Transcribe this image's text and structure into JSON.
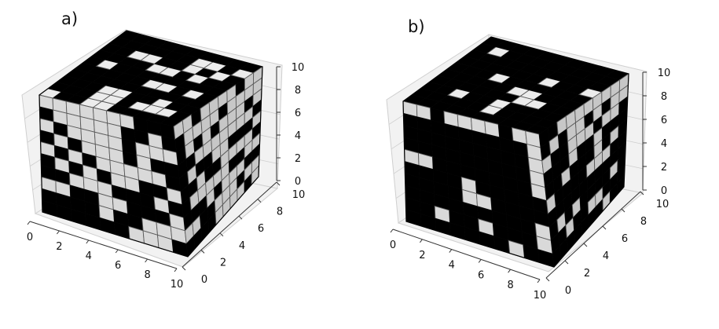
{
  "colors": {
    "background": "#ffffff",
    "pane": "#f2f2f2",
    "grid": "#cfcfcf",
    "voxel_black": "#000000",
    "voxel_white_top": "#ececec",
    "voxel_white_left": "#d9d9d9",
    "voxel_white_right": "#c7c7c7",
    "edge": "#5a5a5a",
    "axis": "#333333"
  },
  "chart_data": [
    {
      "type": "voxel",
      "panel_label": "a)",
      "grid_size": 10,
      "x_ticks": [
        "0",
        "2",
        "4",
        "6",
        "8",
        "10"
      ],
      "y_ticks": [
        "0",
        "2",
        "4",
        "6",
        "8",
        "10"
      ],
      "z_ticks": [
        "0",
        "2",
        "4",
        "6",
        "8",
        "10"
      ],
      "xlim": [
        0,
        10
      ],
      "ylim": [
        0,
        10
      ],
      "zlim": [
        0,
        10
      ],
      "grid": true,
      "white_fraction": 0.3,
      "faces": {
        "top": [
          "1001100000",
          "0001101110",
          "0001100100",
          "0000000000",
          "0000011010",
          "0100000000",
          "0000110100",
          "0011001010",
          "0000001101",
          "0000000000"
        ],
        "front": [
          "1111111000",
          "0111110010",
          "1011110111",
          "0101110100",
          "1010111110",
          "0101011001",
          "0011100010",
          "1100110001",
          "0000100111",
          "0000001110"
        ],
        "right": [
          "1101111011",
          "0111101111",
          "0101011101",
          "0011111110",
          "0100110001",
          "0010011110",
          "0111110011",
          "0001011100",
          "1100111011",
          "0000111101"
        ]
      }
    },
    {
      "type": "voxel",
      "panel_label": "b)",
      "grid_size": 10,
      "x_ticks": [
        "0",
        "2",
        "4",
        "6",
        "8",
        "10"
      ],
      "y_ticks": [
        "0",
        "2",
        "4",
        "6",
        "8",
        "10"
      ],
      "z_ticks": [
        "0",
        "2",
        "4",
        "6",
        "8",
        "10"
      ],
      "xlim": [
        0,
        10
      ],
      "ylim": [
        0,
        10
      ],
      "zlim": [
        0,
        10
      ],
      "grid": true,
      "white_fraction": 0.1,
      "faces": {
        "top": [
          "0000000000",
          "0000010000",
          "0010010000",
          "0000001100",
          "0000011000",
          "0001000000",
          "0000001001",
          "0000000000",
          "0100000000",
          "0000000000"
        ],
        "front": [
          "1101111011",
          "0000000001",
          "0000000001",
          "0000000001",
          "1100000001",
          "0000100000",
          "0000110000",
          "0000000001",
          "0010010001",
          "0000000100"
        ],
        "right": [
          "0011111111",
          "0101101011",
          "1001110110",
          "0001001000",
          "0010001010",
          "1000011100",
          "0000000000",
          "0101000010",
          "0010011000",
          "0000000100"
        ]
      }
    }
  ]
}
